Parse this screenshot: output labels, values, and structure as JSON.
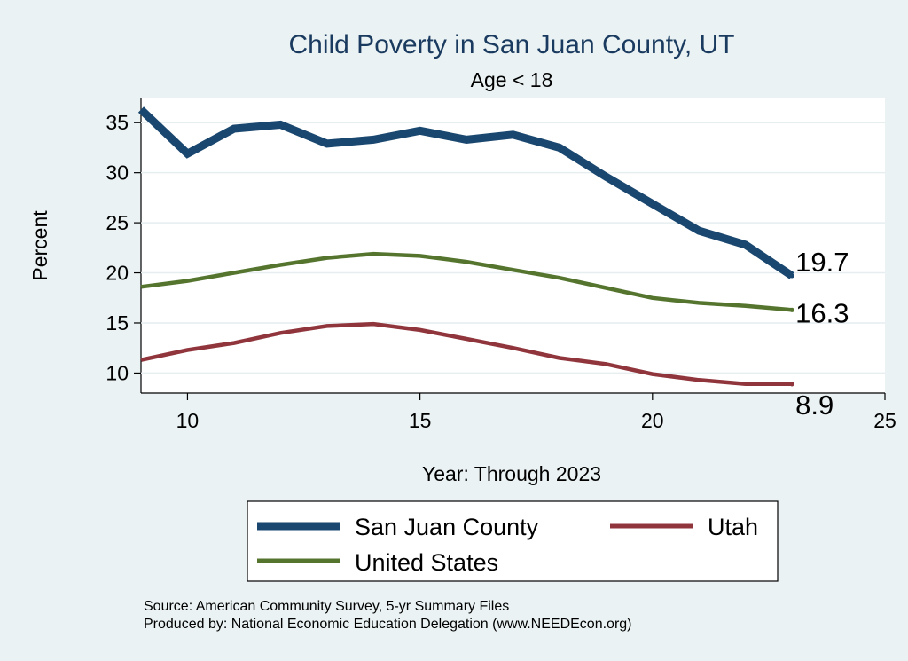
{
  "chart_data": {
    "type": "line",
    "title": "Child Poverty in San Juan County, UT",
    "subtitle": "Age < 18",
    "xlabel": "Year: Through 2023",
    "ylabel": "Percent",
    "xlim": [
      9,
      25
    ],
    "ylim": [
      8,
      37.5
    ],
    "xticks": [
      10,
      15,
      20,
      25
    ],
    "yticks": [
      10,
      15,
      20,
      25,
      30,
      35
    ],
    "grid": true,
    "x": [
      9,
      10,
      11,
      12,
      13,
      14,
      15,
      16,
      17,
      18,
      19,
      20,
      21,
      22,
      23
    ],
    "series": [
      {
        "name": "San Juan County",
        "color": "#1a476f",
        "values": [
          36.3,
          31.9,
          34.4,
          34.8,
          32.9,
          33.3,
          34.2,
          33.3,
          33.8,
          32.5,
          29.6,
          26.9,
          24.2,
          22.8,
          19.7
        ],
        "end_label": "19.7"
      },
      {
        "name": "United States",
        "color": "#55752f",
        "values": [
          18.6,
          19.2,
          20.0,
          20.8,
          21.5,
          21.9,
          21.7,
          21.1,
          20.3,
          19.5,
          18.5,
          17.5,
          17.0,
          16.7,
          16.3
        ],
        "end_label": "16.3"
      },
      {
        "name": "Utah",
        "color": "#90353b",
        "values": [
          11.3,
          12.3,
          13.0,
          14.0,
          14.7,
          14.9,
          14.3,
          13.4,
          12.5,
          11.5,
          10.9,
          9.9,
          9.3,
          8.9,
          8.9
        ],
        "end_label": "8.9"
      }
    ],
    "legend": {
      "placement": "bottom",
      "entries": [
        "San Juan County",
        "Utah",
        "United States"
      ]
    },
    "notes": [
      "Source: American Community Survey, 5-yr Summary Files",
      "Produced by: National Economic Education Delegation (www.NEEDEcon.org)"
    ]
  }
}
